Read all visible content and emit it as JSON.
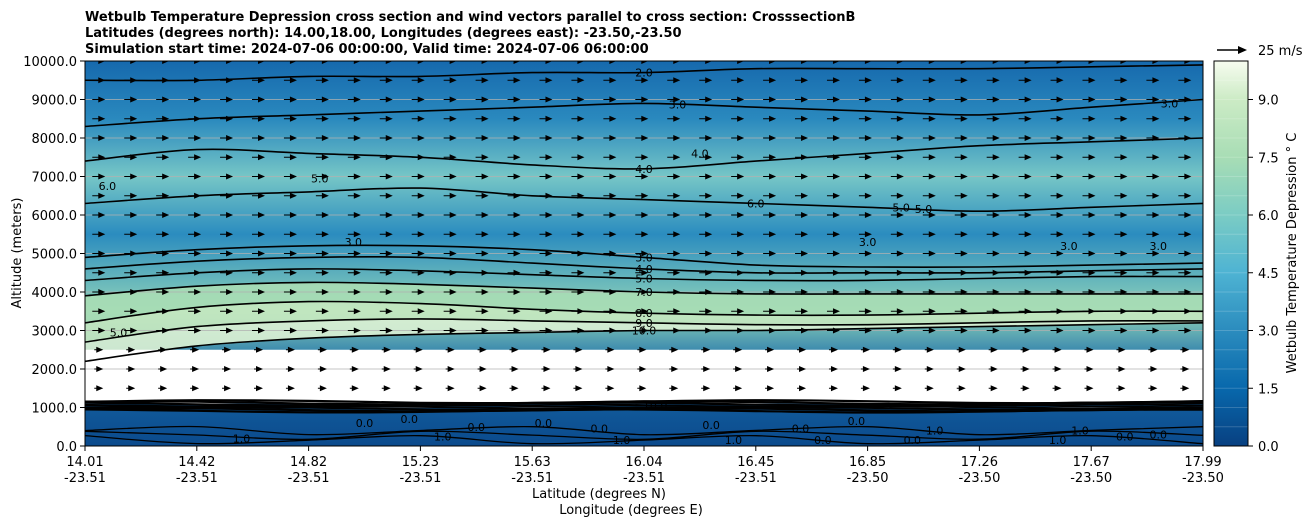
{
  "chart_data": {
    "type": "contour",
    "title": [
      "Wetbulb Temperature Depression cross section and wind vectors parallel to cross section: CrosssectionB",
      "Latitudes (degrees north): 14.00,18.00, Longitudes (degrees east): -23.50,-23.50",
      "Simulation start time: 2024-07-06 00:00:00, Valid time: 2024-07-06 06:00:00"
    ],
    "xlabel_lat": "Latitude (degrees N)",
    "xlabel_lon": "Longitude (degrees E)",
    "ylabel": "Altitude (meters)",
    "ylim": [
      0,
      10000
    ],
    "grid": "horizontal",
    "x_ticks": [
      {
        "lat": "14.01",
        "lon": "-23.51"
      },
      {
        "lat": "14.42",
        "lon": "-23.51"
      },
      {
        "lat": "14.82",
        "lon": "-23.51"
      },
      {
        "lat": "15.23",
        "lon": "-23.51"
      },
      {
        "lat": "15.63",
        "lon": "-23.51"
      },
      {
        "lat": "16.04",
        "lon": "-23.51"
      },
      {
        "lat": "16.45",
        "lon": "-23.51"
      },
      {
        "lat": "16.85",
        "lon": "-23.50"
      },
      {
        "lat": "17.26",
        "lon": "-23.50"
      },
      {
        "lat": "17.67",
        "lon": "-23.50"
      },
      {
        "lat": "17.99",
        "lon": "-23.50"
      }
    ],
    "y_ticks": [
      {
        "value": 0,
        "label": "0.0"
      },
      {
        "value": 1000,
        "label": "1000.0"
      },
      {
        "value": 2000,
        "label": "2000.0"
      },
      {
        "value": 3000,
        "label": "3000.0"
      },
      {
        "value": 4000,
        "label": "4000.0"
      },
      {
        "value": 5000,
        "label": "5000.0"
      },
      {
        "value": 6000,
        "label": "6000.0"
      },
      {
        "value": 7000,
        "label": "7000.0"
      },
      {
        "value": 8000,
        "label": "8000.0"
      },
      {
        "value": 9000,
        "label": "9000.0"
      },
      {
        "value": 10000,
        "label": "10000.0"
      }
    ],
    "colorbar": {
      "label": "Wetbulb Temperature Depression ° C",
      "range": [
        0,
        10
      ],
      "colormap": "GnBu_r",
      "ticks": [
        {
          "value": 0,
          "label": "0.0"
        },
        {
          "value": 1.5,
          "label": "1.5"
        },
        {
          "value": 3,
          "label": "3.0"
        },
        {
          "value": 4.5,
          "label": "4.5"
        },
        {
          "value": 6,
          "label": "6.0"
        },
        {
          "value": 7.5,
          "label": "7.5"
        },
        {
          "value": 9,
          "label": "9.0"
        }
      ]
    },
    "quiver_key": {
      "label": "25 m/s"
    },
    "wind": {
      "rows_altitude_m": [
        1500,
        2000,
        2500,
        3000,
        3500,
        4000,
        4500,
        5000,
        5500,
        6000,
        6500,
        7000,
        7500,
        8000,
        8500,
        9000,
        9500,
        10000
      ],
      "direction": "positive along section",
      "columns": 35
    },
    "contour_levels": [
      {
        "value": 2.0,
        "label": "2.0",
        "altitude_m": [
          9500,
          9500,
          9600,
          9600,
          9700,
          9700,
          9800,
          9800,
          9800,
          9850,
          9900
        ]
      },
      {
        "value": 3.0,
        "label": "3.0",
        "altitude_m": [
          8300,
          8500,
          8600,
          8700,
          8800,
          8900,
          8800,
          8700,
          8600,
          8800,
          9000
        ]
      },
      {
        "value": 4.0,
        "label": "4.0",
        "altitude_m": [
          7400,
          7700,
          7600,
          7500,
          7300,
          7200,
          7400,
          7600,
          7800,
          7900,
          8000
        ]
      },
      {
        "value": 5.0,
        "label": "5.0",
        "altitude_m": [
          6300,
          6500,
          6600,
          6700,
          6500,
          6400,
          6300,
          6200,
          6100,
          6200,
          6300
        ]
      },
      {
        "value": 3.0,
        "label": "3.0",
        "altitude_m": [
          4900,
          5100,
          5200,
          5200,
          5100,
          4900,
          4700,
          4650,
          4650,
          4700,
          4750
        ]
      },
      {
        "value": 4.0,
        "label": "4.0",
        "altitude_m": [
          4600,
          4800,
          4900,
          4900,
          4750,
          4600,
          4500,
          4500,
          4500,
          4550,
          4600
        ]
      },
      {
        "value": 5.0,
        "label": "5.0",
        "altitude_m": [
          4300,
          4500,
          4600,
          4550,
          4450,
          4350,
          4300,
          4300,
          4350,
          4400,
          4400
        ]
      },
      {
        "value": 7.0,
        "label": "7.0",
        "altitude_m": [
          3900,
          4150,
          4250,
          4200,
          4100,
          4000,
          3950,
          3950,
          3950,
          3950,
          3950
        ]
      },
      {
        "value": 8.0,
        "label": "8.0",
        "altitude_m": [
          3200,
          3600,
          3750,
          3700,
          3550,
          3450,
          3400,
          3400,
          3450,
          3500,
          3500
        ]
      },
      {
        "value": 9.0,
        "label": "9.0",
        "altitude_m": [
          2700,
          3100,
          3250,
          3300,
          3250,
          3200,
          3150,
          3150,
          3200,
          3250,
          3250
        ]
      },
      {
        "value": 10.0,
        "label": "10.0",
        "altitude_m": [
          2200,
          2600,
          2800,
          2900,
          2950,
          3000,
          3000,
          3050,
          3100,
          3150,
          3200
        ]
      }
    ],
    "extra_contour_labels": [
      "6.0",
      "5.0",
      "5.0",
      "6.0",
      "3.0",
      "3.0",
      "3.0",
      "3.0",
      "3.0",
      "4.0",
      "5.0",
      "0.0",
      "1.0",
      "10.0",
      "0.0",
      "0.0",
      "1.0",
      "0.0",
      "0.0",
      "1.0",
      "0.0",
      "1.0",
      "0.0",
      "0.0",
      "0.0",
      "1.0",
      "0.0",
      "1.0",
      "1.0",
      "0.0",
      "0.0"
    ]
  }
}
